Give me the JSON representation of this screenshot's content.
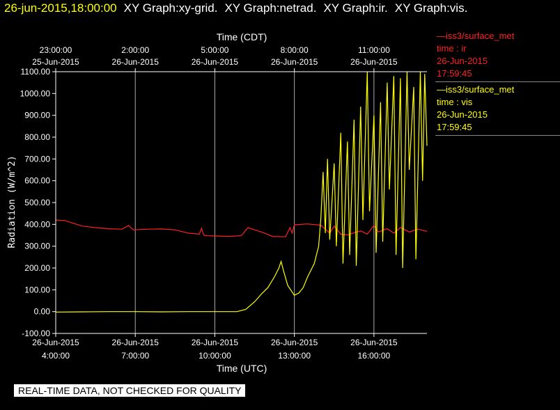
{
  "header": {
    "timestamp": "26-jun-2015,18:00:00",
    "graphs": [
      "XY Graph:xy-grid.",
      "XY Graph:netrad.",
      "XY Graph:ir.",
      "XY Graph:vis."
    ]
  },
  "legend": [
    {
      "dash": "—",
      "source": "iss3/surface_met",
      "var": "time : ir",
      "date": "26-Jun-2015",
      "time": "17:59:45",
      "color": "#ff2020"
    },
    {
      "dash": "—",
      "source": "iss3/surface_met",
      "var": "time : vis",
      "date": "26-Jun-2015",
      "time": "17:59:45",
      "color": "#ffff00"
    }
  ],
  "footer": "REAL-TIME DATA, NOT CHECKED FOR QUALITY",
  "chart_data": {
    "type": "line",
    "xlabel": "Time (UTC)",
    "x2label": "Time (CDT)",
    "ylabel": "Radiation  (W/m^2)",
    "xlim": [
      "2015-06-26T04:00",
      "2015-06-26T18:00"
    ],
    "ylim": [
      -100,
      1100
    ],
    "yticks": [
      "1100.00",
      "1000.00",
      "900.00",
      "800.00",
      "700.00",
      "600.00",
      "500.00",
      "400.00",
      "300.00",
      "200.00",
      "100.00",
      "0.00",
      "-100.00"
    ],
    "xticks": [
      {
        "t": "2015-06-26T04:00",
        "date": "26-Jun-2015",
        "time": "4:00:00"
      },
      {
        "t": "2015-06-26T07:00",
        "date": "26-Jun-2015",
        "time": "7:00:00"
      },
      {
        "t": "2015-06-26T10:00",
        "date": "26-Jun-2015",
        "time": "10:00:00"
      },
      {
        "t": "2015-06-26T13:00",
        "date": "26-Jun-2015",
        "time": "13:00:00"
      },
      {
        "t": "2015-06-26T16:00",
        "date": "26-Jun-2015",
        "time": "16:00:00"
      }
    ],
    "x2ticks": [
      {
        "time": "23:00:00",
        "date": "25-Jun-2015"
      },
      {
        "time": "2:00:00",
        "date": "26-Jun-2015"
      },
      {
        "time": "5:00:00",
        "date": "26-Jun-2015"
      },
      {
        "time": "8:00:00",
        "date": "26-Jun-2015"
      },
      {
        "time": "11:00:00",
        "date": "26-Jun-2015"
      }
    ],
    "grid": true,
    "series": [
      {
        "color": "#ff2020",
        "points": [
          [
            "2015-06-26T04:00",
            420
          ],
          [
            "2015-06-26T04:20",
            418
          ],
          [
            "2015-06-26T04:40",
            405
          ],
          [
            "2015-06-26T05:00",
            392
          ],
          [
            "2015-06-26T05:30",
            385
          ],
          [
            "2015-06-26T06:00",
            380
          ],
          [
            "2015-06-26T06:30",
            378
          ],
          [
            "2015-06-26T06:45",
            395
          ],
          [
            "2015-06-26T06:55",
            375
          ],
          [
            "2015-06-26T07:30",
            378
          ],
          [
            "2015-06-26T08:00",
            379
          ],
          [
            "2015-06-26T08:30",
            375
          ],
          [
            "2015-06-26T09:00",
            360
          ],
          [
            "2015-06-26T09:25",
            355
          ],
          [
            "2015-06-26T09:30",
            382
          ],
          [
            "2015-06-26T09:35",
            350
          ],
          [
            "2015-06-26T09:45",
            348
          ],
          [
            "2015-06-26T10:30",
            345
          ],
          [
            "2015-06-26T11:00",
            348
          ],
          [
            "2015-06-26T11:15",
            385
          ],
          [
            "2015-06-26T11:30",
            375
          ],
          [
            "2015-06-26T11:50",
            362
          ],
          [
            "2015-06-26T12:10",
            345
          ],
          [
            "2015-06-26T12:40",
            343
          ],
          [
            "2015-06-26T12:50",
            385
          ],
          [
            "2015-06-26T12:55",
            360
          ],
          [
            "2015-06-26T13:00",
            398
          ],
          [
            "2015-06-26T13:30",
            402
          ],
          [
            "2015-06-26T14:00",
            396
          ],
          [
            "2015-06-26T14:20",
            360
          ],
          [
            "2015-06-26T14:30",
            392
          ],
          [
            "2015-06-26T14:45",
            355
          ],
          [
            "2015-06-26T15:00",
            352
          ],
          [
            "2015-06-26T15:30",
            370
          ],
          [
            "2015-06-26T15:45",
            355
          ],
          [
            "2015-06-26T16:00",
            395
          ],
          [
            "2015-06-26T16:10",
            365
          ],
          [
            "2015-06-26T16:30",
            380
          ],
          [
            "2015-06-26T16:45",
            360
          ],
          [
            "2015-06-26T17:00",
            385
          ],
          [
            "2015-06-26T17:20",
            365
          ],
          [
            "2015-06-26T17:40",
            378
          ],
          [
            "2015-06-26T18:00",
            368
          ]
        ]
      },
      {
        "color": "#ffff00",
        "points": [
          [
            "2015-06-26T04:00",
            -2
          ],
          [
            "2015-06-26T05:00",
            -1
          ],
          [
            "2015-06-26T06:00",
            0
          ],
          [
            "2015-06-26T07:00",
            0
          ],
          [
            "2015-06-26T08:00",
            -1
          ],
          [
            "2015-06-26T09:00",
            0
          ],
          [
            "2015-06-26T10:00",
            0
          ],
          [
            "2015-06-26T10:50",
            0
          ],
          [
            "2015-06-26T11:10",
            10
          ],
          [
            "2015-06-26T11:30",
            45
          ],
          [
            "2015-06-26T11:45",
            80
          ],
          [
            "2015-06-26T12:00",
            110
          ],
          [
            "2015-06-26T12:15",
            160
          ],
          [
            "2015-06-26T12:25",
            200
          ],
          [
            "2015-06-26T12:30",
            230
          ],
          [
            "2015-06-26T12:35",
            190
          ],
          [
            "2015-06-26T12:45",
            120
          ],
          [
            "2015-06-26T13:00",
            75
          ],
          [
            "2015-06-26T13:10",
            85
          ],
          [
            "2015-06-26T13:20",
            110
          ],
          [
            "2015-06-26T13:30",
            160
          ],
          [
            "2015-06-26T13:45",
            220
          ],
          [
            "2015-06-26T13:55",
            300
          ],
          [
            "2015-06-26T14:00",
            430
          ],
          [
            "2015-06-26T14:05",
            640
          ],
          [
            "2015-06-26T14:10",
            360
          ],
          [
            "2015-06-26T14:15",
            700
          ],
          [
            "2015-06-26T14:20",
            330
          ],
          [
            "2015-06-26T14:30",
            680
          ],
          [
            "2015-06-26T14:35",
            300
          ],
          [
            "2015-06-26T14:45",
            820
          ],
          [
            "2015-06-26T14:50",
            220
          ],
          [
            "2015-06-26T15:00",
            780
          ],
          [
            "2015-06-26T15:05",
            260
          ],
          [
            "2015-06-26T15:15",
            880
          ],
          [
            "2015-06-26T15:20",
            210
          ],
          [
            "2015-06-26T15:30",
            940
          ],
          [
            "2015-06-26T15:35",
            420
          ],
          [
            "2015-06-26T15:45",
            1100
          ],
          [
            "2015-06-26T15:50",
            460
          ],
          [
            "2015-06-26T16:00",
            900
          ],
          [
            "2015-06-26T16:05",
            270
          ],
          [
            "2015-06-26T16:15",
            960
          ],
          [
            "2015-06-26T16:20",
            320
          ],
          [
            "2015-06-26T16:30",
            1050
          ],
          [
            "2015-06-26T16:35",
            560
          ],
          [
            "2015-06-26T16:45",
            1080
          ],
          [
            "2015-06-26T16:50",
            260
          ],
          [
            "2015-06-26T17:00",
            1070
          ],
          [
            "2015-06-26T17:05",
            200
          ],
          [
            "2015-06-26T17:15",
            1100
          ],
          [
            "2015-06-26T17:20",
            650
          ],
          [
            "2015-06-26T17:30",
            1030
          ],
          [
            "2015-06-26T17:35",
            240
          ],
          [
            "2015-06-26T17:45",
            1100
          ],
          [
            "2015-06-26T17:50",
            600
          ],
          [
            "2015-06-26T17:55",
            1090
          ],
          [
            "2015-06-26T18:00",
            760
          ]
        ]
      }
    ]
  }
}
